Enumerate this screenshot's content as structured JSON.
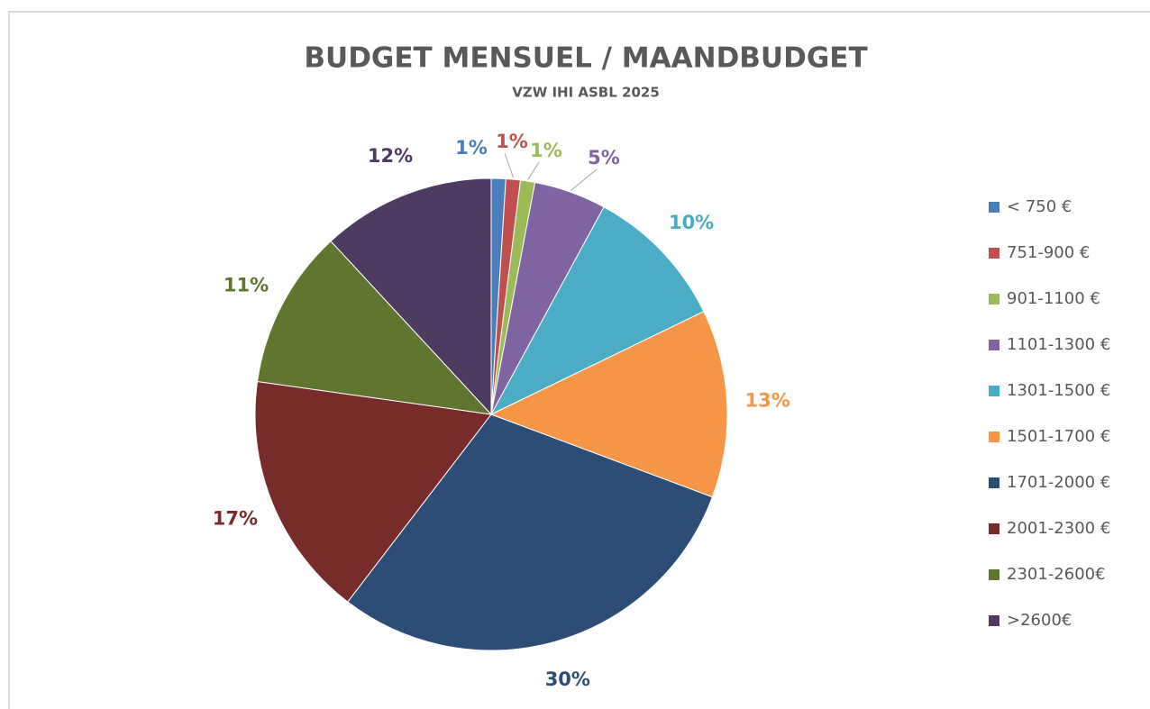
{
  "chart_data": {
    "type": "pie",
    "title": "BUDGET MENSUEL / MAANDBUDGET",
    "subtitle": "VZW IHI ASBL 2025",
    "categories": [
      "< 750 €",
      "751-900 €",
      "901-1100 €",
      "1101-1300 €",
      "1301-1500 €",
      "1501-1700 €",
      "1701-2000 €",
      "2001-2300 €",
      "2301-2600€",
      ">2600€"
    ],
    "values": [
      1,
      1,
      1,
      5,
      10,
      13,
      30,
      17,
      11,
      12
    ],
    "value_labels": [
      "1%",
      "1%",
      "1%",
      "5%",
      "10%",
      "13%",
      "30%",
      "17%",
      "11%",
      "12%"
    ],
    "colors": [
      "#4a7ebb",
      "#c0504d",
      "#9bbb59",
      "#8064a2",
      "#4bacc6",
      "#f79646",
      "#2c4d75",
      "#772c2a",
      "#5f7530",
      "#4d3b62"
    ],
    "legend": "right"
  }
}
